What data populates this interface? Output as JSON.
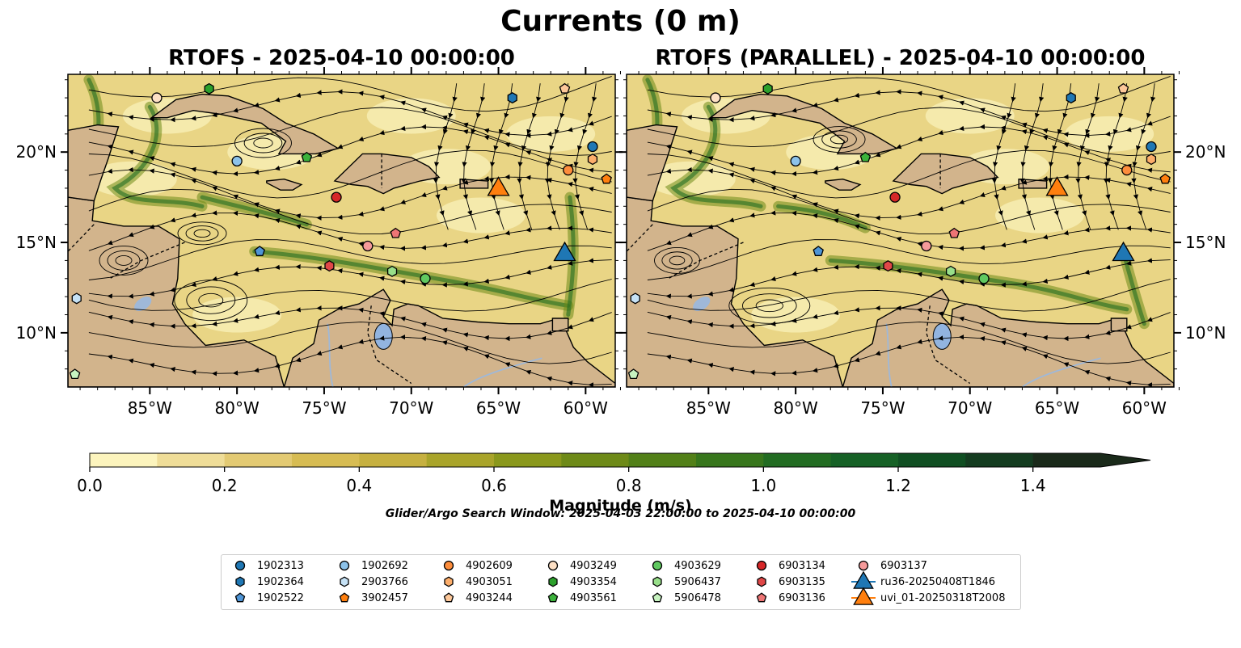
{
  "title": "Currents (0 m)",
  "chart_data": [
    {
      "type": "heatmap",
      "title": "RTOFS - 2025-04-10 00:00:00",
      "xlim": [
        -89.7,
        -58.3
      ],
      "ylim": [
        7.0,
        24.3
      ],
      "xticks": [
        "85°W",
        "80°W",
        "75°W",
        "70°W",
        "65°W",
        "60°W"
      ],
      "yticks": [
        "10°N",
        "15°N",
        "20°N"
      ],
      "xtick_values": [
        -85,
        -80,
        -75,
        -70,
        -65,
        -60
      ],
      "ytick_values": [
        10,
        15,
        20
      ],
      "ytick_side": "left"
    },
    {
      "type": "heatmap",
      "title": "RTOFS (PARALLEL) - 2025-04-10 00:00:00",
      "xlim": [
        -89.7,
        -58.3
      ],
      "ylim": [
        7.0,
        24.3
      ],
      "xticks": [
        "85°W",
        "80°W",
        "75°W",
        "70°W",
        "65°W",
        "60°W"
      ],
      "yticks": [
        "10°N",
        "15°N",
        "20°N"
      ],
      "xtick_values": [
        -85,
        -80,
        -75,
        -70,
        -65,
        -60
      ],
      "ytick_values": [
        10,
        15,
        20
      ],
      "ytick_side": "right"
    }
  ],
  "colorbar": {
    "label": "Magnitude (m/s)",
    "min": 0.0,
    "max": 1.5,
    "step": 0.1,
    "extend": "max",
    "ticks": [
      "0.0",
      "0.2",
      "0.4",
      "0.6",
      "0.8",
      "1.0",
      "1.2",
      "1.4"
    ],
    "colors": [
      "#fcf4bd",
      "#efdd98",
      "#e3ca73",
      "#d7bc53",
      "#c6b040",
      "#a9a42a",
      "#8a981c",
      "#6e8a18",
      "#528018",
      "#37761c",
      "#226c22",
      "#166126",
      "#104f22",
      "#143c20",
      "#1a2a1a"
    ]
  },
  "search_window": "Glider/Argo Search Window: 2025-04-03 22:00:00 to 2025-04-10 00:00:00",
  "legend": [
    {
      "name": "1902313",
      "marker": "circle",
      "color": "#1f77b4"
    },
    {
      "name": "1902364",
      "marker": "hexagon",
      "color": "#1f77b4"
    },
    {
      "name": "1902522",
      "marker": "pentagon",
      "color": "#4f95d6"
    },
    {
      "name": "1902692",
      "marker": "circle",
      "color": "#8cc2ea"
    },
    {
      "name": "2903766",
      "marker": "hexagon",
      "color": "#c6e2f6"
    },
    {
      "name": "3902457",
      "marker": "pentagon",
      "color": "#ff7f0e"
    },
    {
      "name": "4902609",
      "marker": "circle",
      "color": "#fd8d3c"
    },
    {
      "name": "4903051",
      "marker": "hexagon",
      "color": "#fdae6b"
    },
    {
      "name": "4903244",
      "marker": "pentagon",
      "color": "#fdc89a"
    },
    {
      "name": "4903249",
      "marker": "circle",
      "color": "#fde0c5"
    },
    {
      "name": "4903354",
      "marker": "hexagon",
      "color": "#2ca02c"
    },
    {
      "name": "4903561",
      "marker": "pentagon",
      "color": "#3cb23c"
    },
    {
      "name": "4903629",
      "marker": "circle",
      "color": "#60c960"
    },
    {
      "name": "5906437",
      "marker": "hexagon",
      "color": "#98df8a"
    },
    {
      "name": "5906478",
      "marker": "pentagon",
      "color": "#c7f3c0"
    },
    {
      "name": "6903134",
      "marker": "circle",
      "color": "#d62728"
    },
    {
      "name": "6903135",
      "marker": "hexagon",
      "color": "#e04848"
    },
    {
      "name": "6903136",
      "marker": "pentagon",
      "color": "#ee7575"
    },
    {
      "name": "6903137",
      "marker": "circle",
      "color": "#f59a9a"
    },
    {
      "name": "ru36-20250408T1846",
      "marker": "triangle",
      "color": "#1f77b4"
    },
    {
      "name": "uvi_01-20250318T2008",
      "marker": "triangle",
      "color": "#ff7f0e"
    }
  ],
  "observations": [
    {
      "id": "1902313",
      "lon": [
        -59.6,
        -59.6
      ],
      "lat": [
        20.3,
        20.3
      ]
    },
    {
      "id": "1902364",
      "lon": [
        -64.2,
        -64.2
      ],
      "lat": [
        23.0,
        23.0
      ]
    },
    {
      "id": "1902522",
      "lon": [
        -78.7,
        -78.7
      ],
      "lat": [
        14.5,
        14.5
      ]
    },
    {
      "id": "1902692",
      "lon": [
        -80.0,
        -80.0
      ],
      "lat": [
        19.5,
        19.5
      ]
    },
    {
      "id": "2903766",
      "lon": [
        -89.2,
        -89.2
      ],
      "lat": [
        11.9,
        11.9
      ]
    },
    {
      "id": "3902457",
      "lon": [
        -58.8,
        -58.8
      ],
      "lat": [
        18.5,
        18.5
      ]
    },
    {
      "id": "4902609",
      "lon": [
        -61.0,
        -61.0
      ],
      "lat": [
        19.0,
        19.0
      ]
    },
    {
      "id": "4903051",
      "lon": [
        -59.6,
        -59.6
      ],
      "lat": [
        19.6,
        19.6
      ]
    },
    {
      "id": "4903244",
      "lon": [
        -61.2,
        -61.2
      ],
      "lat": [
        23.5,
        23.5
      ]
    },
    {
      "id": "4903249",
      "lon": [
        -84.6,
        -84.6
      ],
      "lat": [
        23.0,
        23.0
      ]
    },
    {
      "id": "4903354",
      "lon": [
        -81.6,
        -81.6
      ],
      "lat": [
        23.5,
        23.5
      ]
    },
    {
      "id": "4903561",
      "lon": [
        -76.0,
        -76.0
      ],
      "lat": [
        19.7,
        19.7
      ]
    },
    {
      "id": "4903629",
      "lon": [
        -69.2,
        -69.2
      ],
      "lat": [
        13.0,
        13.0
      ]
    },
    {
      "id": "5906437",
      "lon": [
        -71.1,
        -71.1
      ],
      "lat": [
        13.4,
        13.4
      ]
    },
    {
      "id": "5906478",
      "lon": [
        -89.3,
        -89.3
      ],
      "lat": [
        7.7,
        7.7
      ]
    },
    {
      "id": "6903134",
      "lon": [
        -74.3,
        -74.3
      ],
      "lat": [
        17.5,
        17.5
      ]
    },
    {
      "id": "6903135",
      "lon": [
        -74.7,
        -74.7
      ],
      "lat": [
        13.7,
        13.7
      ]
    },
    {
      "id": "6903136",
      "lon": [
        -70.9,
        -70.9
      ],
      "lat": [
        15.5,
        15.5
      ]
    },
    {
      "id": "6903137",
      "lon": [
        -72.5,
        -72.5
      ],
      "lat": [
        14.8,
        14.8
      ]
    },
    {
      "id": "ru36-20250408T1846",
      "lon": [
        -61.2,
        -61.2
      ],
      "lat": [
        14.5,
        14.5
      ]
    },
    {
      "id": "uvi_01-20250318T2008",
      "lon": [
        -65.0,
        -65.0
      ],
      "lat": [
        18.1,
        18.1
      ]
    }
  ]
}
